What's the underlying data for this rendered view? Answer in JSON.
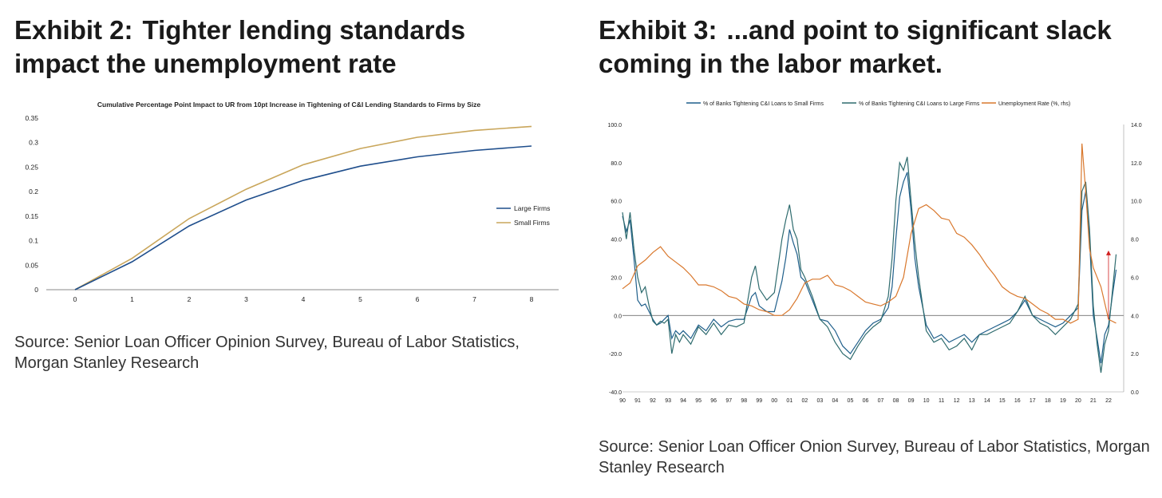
{
  "exhibit2": {
    "label": "Exhibit 2:",
    "title": "Tighter lending standards impact the unemployment rate",
    "source": "Source: Senior Loan Officer Opinion Survey, Bureau of Labor Statistics, Morgan Stanley Research"
  },
  "exhibit3": {
    "label": "Exhibit 3:",
    "title": "...and point to significant slack coming in the labor market.",
    "source": "Source: Senior Loan Officer Onion Survey, Bureau of Labor Statistics, Morgan Stanley Research"
  },
  "chart_data": [
    {
      "type": "line",
      "title": "Cumulative Percentage Point Impact to UR from 10pt Increase in Tightening of C&I Lending Standards to  Firms by Size",
      "xlabel": "",
      "ylabel": "",
      "x": [
        0,
        1,
        2,
        3,
        4,
        5,
        6,
        7,
        8
      ],
      "y_ticks": [
        "0",
        "0.05",
        "0.1",
        "0.15",
        "0.2",
        "0.25",
        "0.3",
        "0.35"
      ],
      "ylim": [
        0,
        0.35
      ],
      "legend_position": "right",
      "grid": false,
      "series": [
        {
          "name": "Large Firms",
          "color": "#1f4e8c",
          "values": [
            0,
            0.057,
            0.13,
            0.183,
            0.223,
            0.252,
            0.271,
            0.284,
            0.293
          ]
        },
        {
          "name": "Small Firms",
          "color": "#c9a65b",
          "values": [
            0,
            0.064,
            0.145,
            0.205,
            0.255,
            0.288,
            0.311,
            0.325,
            0.333
          ]
        }
      ]
    },
    {
      "type": "line",
      "title": "",
      "x_ticks": [
        "90",
        "91",
        "92",
        "93",
        "94",
        "95",
        "96",
        "97",
        "98",
        "99",
        "00",
        "01",
        "02",
        "03",
        "04",
        "05",
        "06",
        "07",
        "08",
        "09",
        "10",
        "11",
        "12",
        "13",
        "14",
        "15",
        "16",
        "17",
        "18",
        "19",
        "20",
        "21",
        "22"
      ],
      "y_left_ticks": [
        "100.0",
        "80.0",
        "60.0",
        "40.0",
        "20.0",
        "0.0",
        "-20.0",
        "-40.0"
      ],
      "y_right_ticks": [
        "14.0",
        "12.0",
        "10.0",
        "8.0",
        "6.0",
        "4.0",
        "2.0",
        "0.0"
      ],
      "ylim_left": [
        -40,
        100
      ],
      "ylim_right": [
        0,
        14
      ],
      "xlim": [
        1990,
        2023
      ],
      "legend_position": "top",
      "grid": false,
      "series": [
        {
          "name": "% of Banks Tightening C&I Loans to Small Firms",
          "axis": "left",
          "color": "#1f5f8b",
          "x": [
            1990.0,
            1990.25,
            1990.5,
            1990.75,
            1991.0,
            1991.25,
            1991.5,
            1991.75,
            1992.0,
            1992.25,
            1992.5,
            1992.75,
            1993.0,
            1993.25,
            1993.5,
            1993.75,
            1994.0,
            1994.5,
            1995.0,
            1995.5,
            1996.0,
            1996.5,
            1997.0,
            1997.5,
            1998.0,
            1998.5,
            1998.75,
            1999.0,
            1999.5,
            2000.0,
            2000.5,
            2000.75,
            2001.0,
            2001.25,
            2001.5,
            2001.75,
            2002.0,
            2002.5,
            2003.0,
            2003.5,
            2004.0,
            2004.5,
            2005.0,
            2005.5,
            2006.0,
            2006.5,
            2007.0,
            2007.5,
            2007.75,
            2008.0,
            2008.25,
            2008.5,
            2008.75,
            2009.0,
            2009.25,
            2009.5,
            2010.0,
            2010.5,
            2011.0,
            2011.5,
            2012.0,
            2012.5,
            2013.0,
            2013.5,
            2014.0,
            2014.5,
            2015.0,
            2015.5,
            2016.0,
            2016.5,
            2017.0,
            2017.5,
            2018.0,
            2018.5,
            2019.0,
            2019.5,
            2019.75,
            2020.0,
            2020.25,
            2020.5,
            2020.75,
            2021.0,
            2021.25,
            2021.5,
            2021.75,
            2022.0,
            2022.25,
            2022.5
          ],
          "values": [
            52,
            44,
            50,
            30,
            8,
            5,
            6,
            2,
            -2,
            -5,
            -4,
            -2,
            0,
            -12,
            -8,
            -10,
            -8,
            -12,
            -5,
            -8,
            -2,
            -6,
            -3,
            -2,
            -2,
            10,
            12,
            5,
            2,
            2,
            18,
            30,
            45,
            38,
            32,
            20,
            18,
            8,
            -2,
            -3,
            -8,
            -16,
            -20,
            -14,
            -8,
            -4,
            -2,
            4,
            15,
            40,
            62,
            70,
            75,
            55,
            30,
            15,
            -5,
            -12,
            -10,
            -14,
            -12,
            -10,
            -14,
            -10,
            -8,
            -6,
            -4,
            -2,
            2,
            8,
            0,
            -2,
            -4,
            -6,
            -4,
            0,
            2,
            4,
            55,
            65,
            40,
            0,
            -12,
            -25,
            -10,
            -5,
            10,
            24
          ]
        },
        {
          "name": "% of Banks Tightening C&I Loans to Large Firms",
          "axis": "left",
          "color": "#2e6b6e",
          "x": [
            1990.0,
            1990.25,
            1990.5,
            1990.75,
            1991.0,
            1991.25,
            1991.5,
            1991.75,
            1992.0,
            1992.25,
            1992.5,
            1992.75,
            1993.0,
            1993.25,
            1993.5,
            1993.75,
            1994.0,
            1994.5,
            1995.0,
            1995.5,
            1996.0,
            1996.5,
            1997.0,
            1997.5,
            1998.0,
            1998.5,
            1998.75,
            1999.0,
            1999.5,
            2000.0,
            2000.5,
            2000.75,
            2001.0,
            2001.25,
            2001.5,
            2001.75,
            2002.0,
            2002.5,
            2003.0,
            2003.5,
            2004.0,
            2004.5,
            2005.0,
            2005.5,
            2006.0,
            2006.5,
            2007.0,
            2007.5,
            2007.75,
            2008.0,
            2008.25,
            2008.5,
            2008.75,
            2009.0,
            2009.25,
            2009.5,
            2010.0,
            2010.5,
            2011.0,
            2011.5,
            2012.0,
            2012.5,
            2013.0,
            2013.5,
            2014.0,
            2014.5,
            2015.0,
            2015.5,
            2016.0,
            2016.5,
            2017.0,
            2017.5,
            2018.0,
            2018.5,
            2019.0,
            2019.5,
            2019.75,
            2020.0,
            2020.25,
            2020.5,
            2020.75,
            2021.0,
            2021.25,
            2021.5,
            2021.75,
            2022.0,
            2022.25,
            2022.5
          ],
          "values": [
            54,
            40,
            54,
            35,
            20,
            12,
            15,
            5,
            -3,
            -5,
            -3,
            -4,
            -2,
            -20,
            -10,
            -14,
            -10,
            -15,
            -6,
            -10,
            -4,
            -10,
            -5,
            -6,
            -4,
            20,
            26,
            14,
            8,
            12,
            40,
            50,
            58,
            45,
            40,
            24,
            20,
            10,
            -2,
            -6,
            -14,
            -20,
            -23,
            -16,
            -10,
            -6,
            -3,
            10,
            30,
            60,
            80,
            76,
            83,
            60,
            38,
            20,
            -8,
            -14,
            -12,
            -18,
            -16,
            -12,
            -18,
            -10,
            -10,
            -8,
            -6,
            -4,
            2,
            10,
            0,
            -4,
            -6,
            -10,
            -6,
            -2,
            2,
            6,
            65,
            70,
            45,
            5,
            -15,
            -30,
            -15,
            -8,
            12,
            32
          ]
        },
        {
          "name": "Unemployment Rate (%, rhs)",
          "axis": "right",
          "color": "#d9782d",
          "x": [
            1990.0,
            1990.5,
            1991.0,
            1991.5,
            1992.0,
            1992.5,
            1993.0,
            1993.5,
            1994.0,
            1994.5,
            1995.0,
            1995.5,
            1996.0,
            1996.5,
            1997.0,
            1997.5,
            1998.0,
            1998.5,
            1999.0,
            1999.5,
            2000.0,
            2000.5,
            2001.0,
            2001.5,
            2002.0,
            2002.5,
            2003.0,
            2003.5,
            2004.0,
            2004.5,
            2005.0,
            2005.5,
            2006.0,
            2006.5,
            2007.0,
            2007.5,
            2008.0,
            2008.5,
            2009.0,
            2009.5,
            2010.0,
            2010.5,
            2011.0,
            2011.5,
            2012.0,
            2012.5,
            2013.0,
            2013.5,
            2014.0,
            2014.5,
            2015.0,
            2015.5,
            2016.0,
            2016.5,
            2017.0,
            2017.5,
            2018.0,
            2018.5,
            2019.0,
            2019.5,
            2020.0,
            2020.25,
            2020.5,
            2020.75,
            2021.0,
            2021.5,
            2022.0,
            2022.5
          ],
          "values": [
            5.4,
            5.7,
            6.6,
            6.9,
            7.3,
            7.6,
            7.1,
            6.8,
            6.5,
            6.1,
            5.6,
            5.6,
            5.5,
            5.3,
            5.0,
            4.9,
            4.6,
            4.5,
            4.3,
            4.2,
            4.0,
            4.0,
            4.3,
            4.9,
            5.7,
            5.9,
            5.9,
            6.1,
            5.6,
            5.5,
            5.3,
            5.0,
            4.7,
            4.6,
            4.5,
            4.7,
            5.0,
            6.0,
            8.3,
            9.6,
            9.8,
            9.5,
            9.1,
            9.0,
            8.3,
            8.1,
            7.7,
            7.2,
            6.6,
            6.1,
            5.5,
            5.2,
            5.0,
            4.9,
            4.6,
            4.3,
            4.1,
            3.8,
            3.8,
            3.6,
            3.8,
            13.0,
            10.5,
            7.5,
            6.5,
            5.5,
            3.8,
            3.6
          ]
        }
      ],
      "annotations": [
        {
          "type": "arrow",
          "color": "#d02020",
          "x": 2022.0,
          "from_value": 3.8,
          "to_value": 7.4,
          "axis": "right"
        }
      ]
    }
  ]
}
